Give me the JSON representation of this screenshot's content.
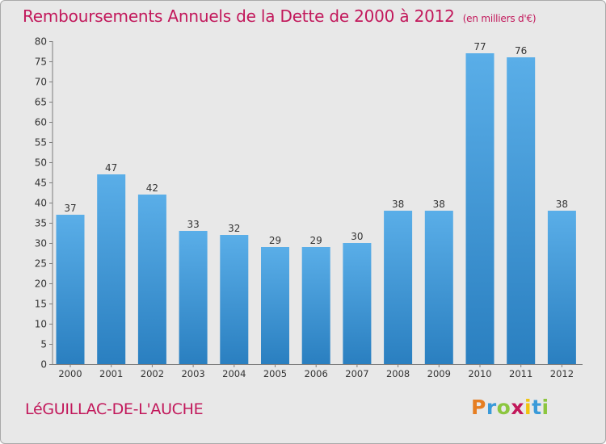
{
  "chart_data": {
    "type": "bar",
    "title": "Remboursements Annuels de la Dette de 2000 à 2012",
    "unit": "(en milliers d'€)",
    "categories": [
      "2000",
      "2001",
      "2002",
      "2003",
      "2004",
      "2005",
      "2006",
      "2007",
      "2008",
      "2009",
      "2010",
      "2011",
      "2012"
    ],
    "values": [
      37,
      47,
      42,
      33,
      32,
      29,
      29,
      30,
      38,
      38,
      77,
      76,
      38
    ],
    "ylim": [
      0,
      80
    ],
    "yticks": [
      0,
      5,
      10,
      15,
      20,
      25,
      30,
      35,
      40,
      45,
      50,
      55,
      60,
      65,
      70,
      75,
      80
    ],
    "grid": false,
    "bar_color_top": "#5aaee8",
    "bar_color_bottom": "#2a7fc0"
  },
  "footer": {
    "place": "LéGUILLAC-DE-L'AUCHE",
    "brand_letters": [
      "P",
      "r",
      "o",
      "x",
      "i",
      "t",
      "i"
    ],
    "brand_colors": [
      "#e67e22",
      "#3a9ad9",
      "#8cc63f",
      "#c2185b",
      "#f1c40f",
      "#3a9ad9",
      "#8cc63f"
    ]
  }
}
